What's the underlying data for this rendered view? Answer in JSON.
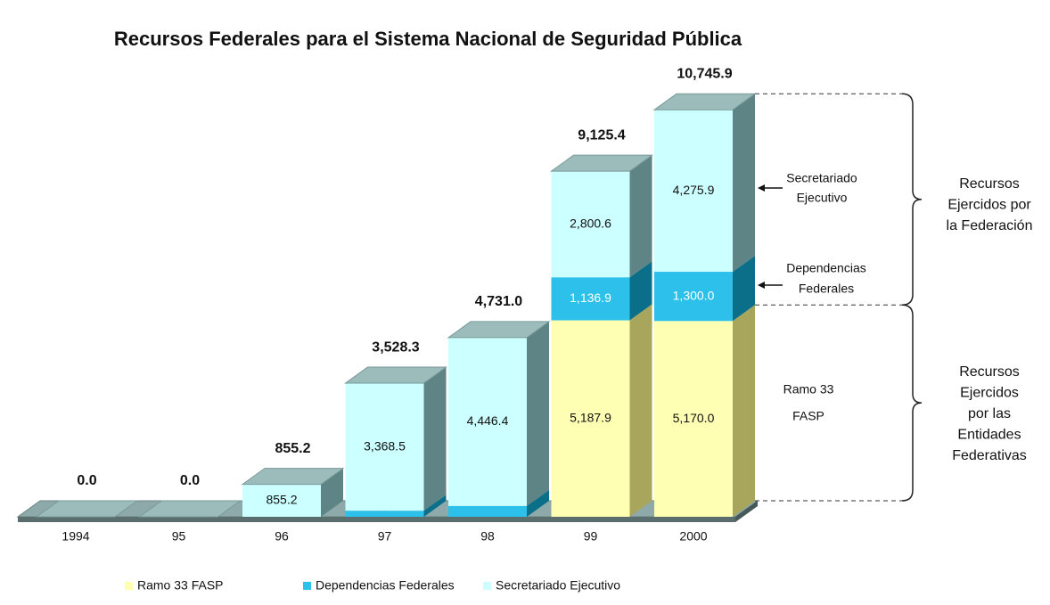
{
  "chart_data": {
    "type": "bar3d-stacked",
    "title": "Recursos Federales para el Sistema Nacional de Seguridad Pública",
    "categories": [
      "1994",
      "95",
      "96",
      "97",
      "98",
      "99",
      "2000"
    ],
    "series": [
      {
        "name": "Ramo 33 FASP",
        "color": "#ffffb3",
        "side": "#a8a65c",
        "values": [
          0,
          0,
          0,
          0,
          0,
          5187.9,
          5170.0
        ],
        "value_labels": [
          null,
          null,
          null,
          null,
          null,
          "5,187.9",
          "5,170.0"
        ]
      },
      {
        "name": "Dependencias Federales",
        "color": "#2cc0ea",
        "side": "#0b6f8a",
        "values": [
          0,
          0,
          0,
          159.8,
          284.6,
          1136.9,
          1300.0
        ],
        "value_labels": [
          null,
          null,
          null,
          "159.8",
          "284.6",
          "1,136.9",
          "1,300.0"
        ]
      },
      {
        "name": "Secretariado Ejecutivo",
        "color": "#ccffff",
        "side": "#5f8485",
        "values": [
          0,
          0,
          855.2,
          3368.5,
          4446.4,
          2800.6,
          4275.9
        ],
        "value_labels": [
          null,
          null,
          "855.2",
          "3,368.5",
          "4,446.4",
          "2,800.6",
          "4,275.9"
        ]
      }
    ],
    "totals": [
      0,
      0,
      855.2,
      3528.3,
      4731.0,
      9125.4,
      10745.9
    ],
    "total_labels": [
      "0.0",
      "0.0",
      "855.2",
      "3,528.3",
      "4,731.0",
      "9,125.4",
      "10,745.9"
    ],
    "annotations": {
      "secretariado": [
        "Secretariado",
        "Ejecutivo"
      ],
      "dependencias": [
        "Dependencias",
        "Federales"
      ],
      "ramo": [
        "Ramo 33",
        "FASP"
      ],
      "federacion": [
        "Recursos",
        "Ejercidos por",
        "la Federación"
      ],
      "entidades": [
        "Recursos",
        "Ejercidos",
        "por las",
        "Entidades",
        "Federativas"
      ]
    }
  }
}
